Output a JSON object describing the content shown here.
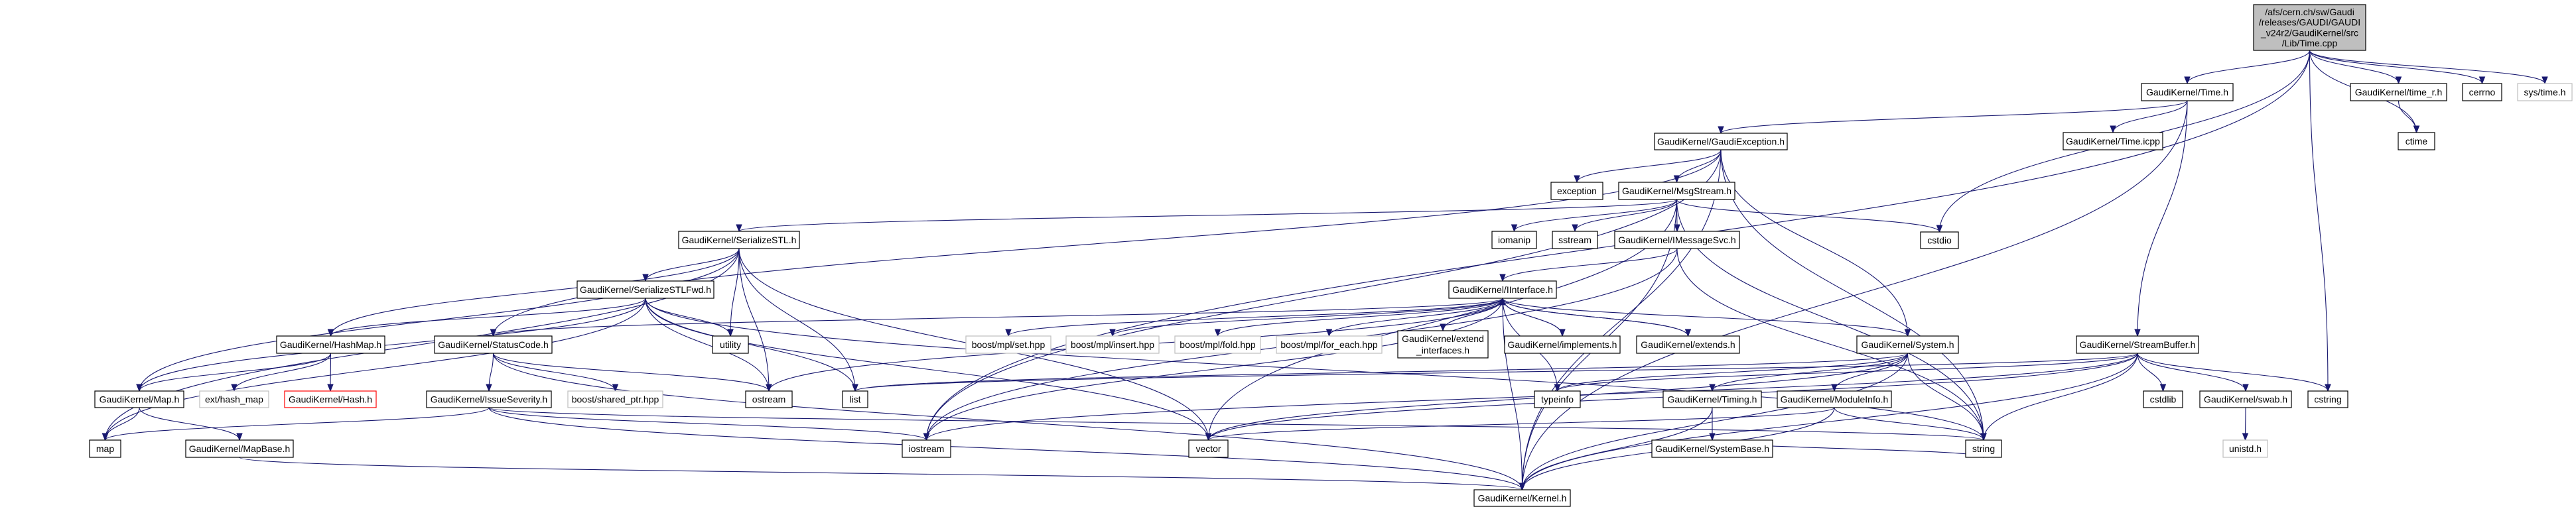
{
  "graph": {
    "edge_color": "#191970",
    "root_fill": "#bfbfbf",
    "nodes": {
      "root": {
        "lines": [
          "/afs/cern.ch/sw/Gaudi",
          "/releases/GAUDI/GAUDI",
          "_v24r2/GaudiKernel/src",
          "/Lib/Time.cpp"
        ],
        "style": "root"
      },
      "time_h": {
        "lines": [
          "GaudiKernel/Time.h"
        ]
      },
      "time_r_h": {
        "lines": [
          "GaudiKernel/time_r.h"
        ]
      },
      "cerrno": {
        "lines": [
          "cerrno"
        ]
      },
      "sys_time_h": {
        "lines": [
          "sys/time.h"
        ],
        "style": "ext"
      },
      "ctime": {
        "lines": [
          "ctime"
        ]
      },
      "time_icpp": {
        "lines": [
          "GaudiKernel/Time.icpp"
        ]
      },
      "gaudi_exception_h": {
        "lines": [
          "GaudiKernel/GaudiException.h"
        ]
      },
      "exception": {
        "lines": [
          "exception"
        ]
      },
      "msgstream_h": {
        "lines": [
          "GaudiKernel/MsgStream.h"
        ]
      },
      "cstdio": {
        "lines": [
          "cstdio"
        ]
      },
      "iomanip": {
        "lines": [
          "iomanip"
        ]
      },
      "sstream": {
        "lines": [
          "sstream"
        ]
      },
      "imessagesvc_h": {
        "lines": [
          "GaudiKernel/IMessageSvc.h"
        ]
      },
      "serializestl_h": {
        "lines": [
          "GaudiKernel/SerializeSTL.h"
        ]
      },
      "serializestlfwd_h": {
        "lines": [
          "GaudiKernel/SerializeSTLFwd.h"
        ]
      },
      "iinterface_h": {
        "lines": [
          "GaudiKernel/IInterface.h"
        ]
      },
      "hashmap_h": {
        "lines": [
          "GaudiKernel/HashMap.h"
        ]
      },
      "statuscode_h": {
        "lines": [
          "GaudiKernel/StatusCode.h"
        ]
      },
      "utility": {
        "lines": [
          "utility"
        ]
      },
      "boost_mpl_set": {
        "lines": [
          "boost/mpl/set.hpp"
        ],
        "style": "ext"
      },
      "boost_mpl_insert": {
        "lines": [
          "boost/mpl/insert.hpp"
        ],
        "style": "ext"
      },
      "boost_mpl_fold": {
        "lines": [
          "boost/mpl/fold.hpp"
        ],
        "style": "ext"
      },
      "boost_mpl_for_each": {
        "lines": [
          "boost/mpl/for_each.hpp"
        ],
        "style": "ext"
      },
      "extend_interfaces_h": {
        "lines": [
          "GaudiKernel/extend",
          "_interfaces.h"
        ]
      },
      "implements_h": {
        "lines": [
          "GaudiKernel/implements.h"
        ]
      },
      "extends_h": {
        "lines": [
          "GaudiKernel/extends.h"
        ]
      },
      "system_h": {
        "lines": [
          "GaudiKernel/System.h"
        ]
      },
      "streambuffer_h": {
        "lines": [
          "GaudiKernel/StreamBuffer.h"
        ]
      },
      "map_h": {
        "lines": [
          "GaudiKernel/Map.h"
        ]
      },
      "ext_hash_map": {
        "lines": [
          "ext/hash_map"
        ],
        "style": "ext"
      },
      "hash_h": {
        "lines": [
          "GaudiKernel/Hash.h"
        ],
        "style": "red"
      },
      "issueseverity_h": {
        "lines": [
          "GaudiKernel/IssueSeverity.h"
        ]
      },
      "boost_shared_ptr": {
        "lines": [
          "boost/shared_ptr.hpp"
        ],
        "style": "ext"
      },
      "ostream": {
        "lines": [
          "ostream"
        ]
      },
      "list": {
        "lines": [
          "list"
        ]
      },
      "typeinfo": {
        "lines": [
          "typeinfo"
        ]
      },
      "timing_h": {
        "lines": [
          "GaudiKernel/Timing.h"
        ]
      },
      "moduleinfo_h": {
        "lines": [
          "GaudiKernel/ModuleInfo.h"
        ]
      },
      "cstdlib": {
        "lines": [
          "cstdlib"
        ]
      },
      "swab_h": {
        "lines": [
          "GaudiKernel/swab.h"
        ]
      },
      "cstring": {
        "lines": [
          "cstring"
        ]
      },
      "map": {
        "lines": [
          "map"
        ]
      },
      "mapbase_h": {
        "lines": [
          "GaudiKernel/MapBase.h"
        ]
      },
      "iostream": {
        "lines": [
          "iostream"
        ]
      },
      "vector": {
        "lines": [
          "vector"
        ]
      },
      "systembase_h": {
        "lines": [
          "GaudiKernel/SystemBase.h"
        ]
      },
      "string": {
        "lines": [
          "string"
        ]
      },
      "unistd_h": {
        "lines": [
          "unistd.h"
        ],
        "style": "ext"
      },
      "kernel_h": {
        "lines": [
          "GaudiKernel/Kernel.h"
        ]
      }
    },
    "edges": [
      [
        "root",
        "time_h"
      ],
      [
        "root",
        "time_r_h"
      ],
      [
        "root",
        "cerrno"
      ],
      [
        "root",
        "sys_time_h"
      ],
      [
        "root",
        "ctime"
      ],
      [
        "root",
        "cstdio"
      ],
      [
        "root",
        "cstring"
      ],
      [
        "root",
        "iostream"
      ],
      [
        "time_h",
        "gaudi_exception_h"
      ],
      [
        "time_h",
        "time_icpp"
      ],
      [
        "time_h",
        "streambuffer_h"
      ],
      [
        "time_h",
        "kernel_h"
      ],
      [
        "time_r_h",
        "ctime"
      ],
      [
        "gaudi_exception_h",
        "exception"
      ],
      [
        "gaudi_exception_h",
        "msgstream_h"
      ],
      [
        "gaudi_exception_h",
        "statuscode_h"
      ],
      [
        "gaudi_exception_h",
        "system_h"
      ],
      [
        "gaudi_exception_h",
        "string"
      ],
      [
        "gaudi_exception_h",
        "iostream"
      ],
      [
        "gaudi_exception_h",
        "kernel_h"
      ],
      [
        "msgstream_h",
        "iomanip"
      ],
      [
        "msgstream_h",
        "sstream"
      ],
      [
        "msgstream_h",
        "imessagesvc_h"
      ],
      [
        "msgstream_h",
        "serializestl_h"
      ],
      [
        "msgstream_h",
        "cstdio"
      ],
      [
        "msgstream_h",
        "string"
      ],
      [
        "msgstream_h",
        "vector"
      ],
      [
        "msgstream_h",
        "kernel_h"
      ],
      [
        "imessagesvc_h",
        "iinterface_h"
      ],
      [
        "imessagesvc_h",
        "string"
      ],
      [
        "imessagesvc_h",
        "iostream"
      ],
      [
        "iinterface_h",
        "statuscode_h"
      ],
      [
        "iinterface_h",
        "boost_mpl_set"
      ],
      [
        "iinterface_h",
        "boost_mpl_insert"
      ],
      [
        "iinterface_h",
        "boost_mpl_fold"
      ],
      [
        "iinterface_h",
        "boost_mpl_for_each"
      ],
      [
        "iinterface_h",
        "extend_interfaces_h"
      ],
      [
        "iinterface_h",
        "implements_h"
      ],
      [
        "iinterface_h",
        "extends_h"
      ],
      [
        "iinterface_h",
        "system_h"
      ],
      [
        "iinterface_h",
        "typeinfo"
      ],
      [
        "iinterface_h",
        "ostream"
      ],
      [
        "iinterface_h",
        "iostream"
      ],
      [
        "iinterface_h",
        "kernel_h"
      ],
      [
        "extend_interfaces_h",
        "iinterface_h"
      ],
      [
        "implements_h",
        "iinterface_h"
      ],
      [
        "extends_h",
        "iinterface_h"
      ],
      [
        "serializestl_h",
        "serializestlfwd_h"
      ],
      [
        "serializestl_h",
        "hashmap_h"
      ],
      [
        "serializestl_h",
        "map_h"
      ],
      [
        "serializestl_h",
        "map"
      ],
      [
        "serializestl_h",
        "utility"
      ],
      [
        "serializestl_h",
        "ostream"
      ],
      [
        "serializestl_h",
        "list"
      ],
      [
        "serializestl_h",
        "vector"
      ],
      [
        "serializestlfwd_h",
        "hashmap_h"
      ],
      [
        "serializestlfwd_h",
        "map_h"
      ],
      [
        "serializestlfwd_h",
        "map"
      ],
      [
        "serializestlfwd_h",
        "utility"
      ],
      [
        "serializestlfwd_h",
        "list"
      ],
      [
        "serializestlfwd_h",
        "vector"
      ],
      [
        "serializestlfwd_h",
        "string"
      ],
      [
        "serializestlfwd_h",
        "ostream"
      ],
      [
        "hashmap_h",
        "map_h"
      ],
      [
        "hashmap_h",
        "ext_hash_map"
      ],
      [
        "hashmap_h",
        "hash_h"
      ],
      [
        "map_h",
        "map"
      ],
      [
        "map_h",
        "mapbase_h"
      ],
      [
        "mapbase_h",
        "kernel_h"
      ],
      [
        "statuscode_h",
        "issueseverity_h"
      ],
      [
        "statuscode_h",
        "boost_shared_ptr"
      ],
      [
        "statuscode_h",
        "ostream"
      ],
      [
        "statuscode_h",
        "kernel_h"
      ],
      [
        "issueseverity_h",
        "map"
      ],
      [
        "issueseverity_h",
        "string"
      ],
      [
        "issueseverity_h",
        "iostream"
      ],
      [
        "issueseverity_h",
        "kernel_h"
      ],
      [
        "system_h",
        "typeinfo"
      ],
      [
        "system_h",
        "timing_h"
      ],
      [
        "system_h",
        "moduleinfo_h"
      ],
      [
        "system_h",
        "string"
      ],
      [
        "system_h",
        "vector"
      ],
      [
        "system_h",
        "list"
      ],
      [
        "system_h",
        "kernel_h"
      ],
      [
        "timing_h",
        "systembase_h"
      ],
      [
        "timing_h",
        "kernel_h"
      ],
      [
        "systembase_h",
        "string"
      ],
      [
        "moduleinfo_h",
        "string"
      ],
      [
        "moduleinfo_h",
        "vector"
      ],
      [
        "moduleinfo_h",
        "kernel_h"
      ],
      [
        "streambuffer_h",
        "cstdlib"
      ],
      [
        "streambuffer_h",
        "swab_h"
      ],
      [
        "streambuffer_h",
        "cstring"
      ],
      [
        "streambuffer_h",
        "string"
      ],
      [
        "streambuffer_h",
        "list"
      ],
      [
        "streambuffer_h",
        "vector"
      ],
      [
        "streambuffer_h",
        "typeinfo"
      ],
      [
        "streambuffer_h",
        "iostream"
      ],
      [
        "streambuffer_h",
        "kernel_h"
      ],
      [
        "swab_h",
        "unistd_h"
      ]
    ]
  }
}
